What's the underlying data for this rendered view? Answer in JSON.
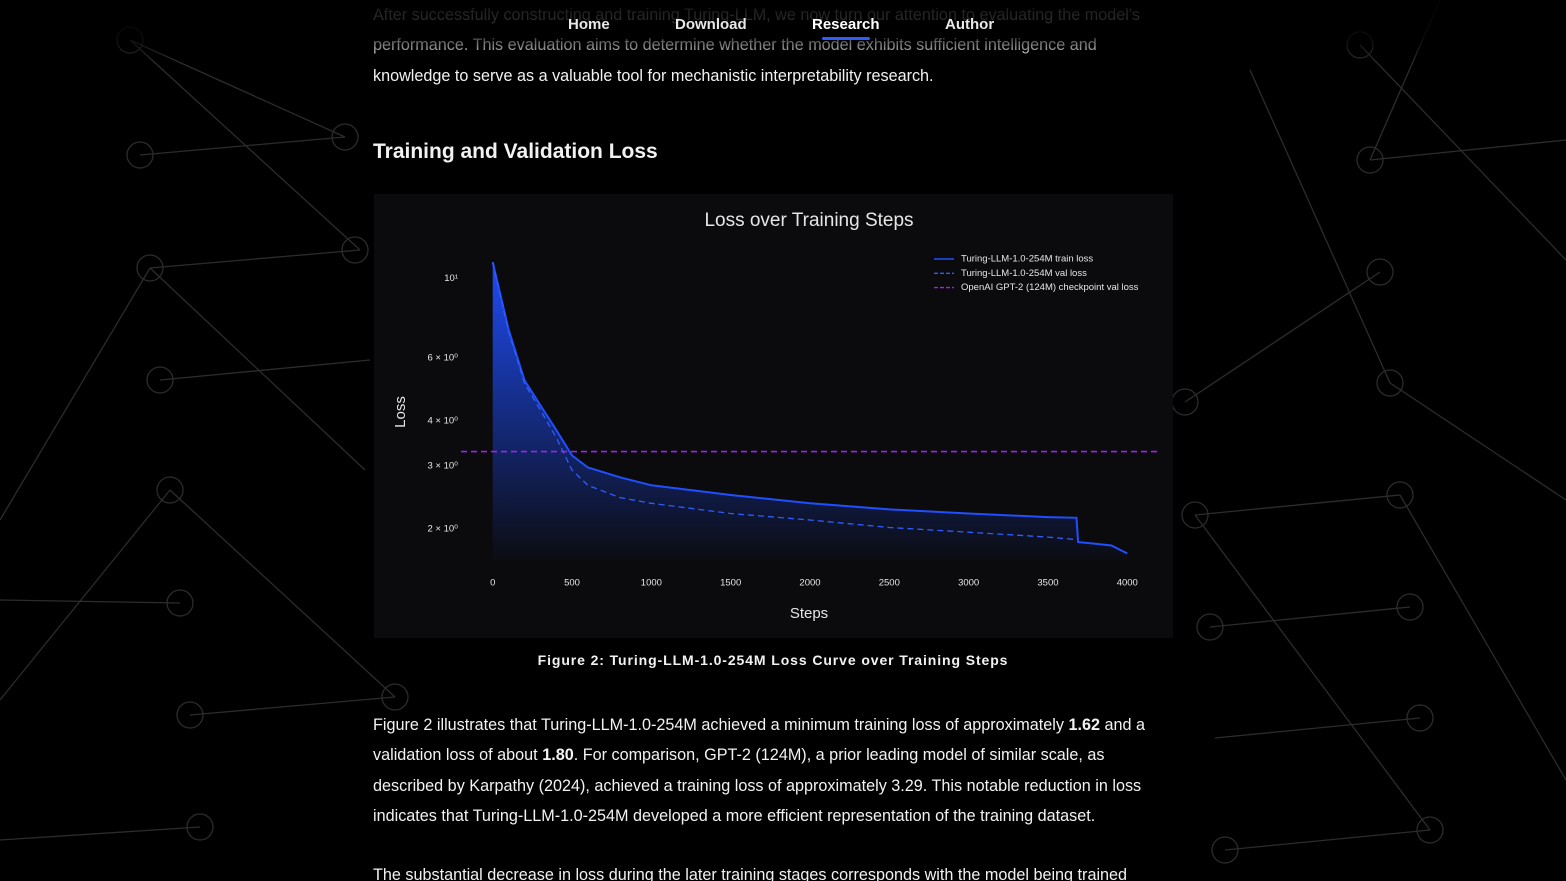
{
  "nav": {
    "items": [
      "Home",
      "Download",
      "Research",
      "Author"
    ],
    "active": 2
  },
  "intro": "After successfully constructing and training Turing-LLM, we now turn our attention to evaluating the model's performance. This evaluation aims to determine whether the model exhibits sufficient intelligence and knowledge to serve as a valuable tool for mechanistic interpretability research.",
  "heading": "Training and Validation Loss",
  "chart_data": {
    "type": "line",
    "title": "Loss over Training Steps",
    "x_label": "Steps",
    "y_label": "Loss",
    "log_y": true,
    "legend": "upper right",
    "xlim": [
      -200,
      4200
    ],
    "xticks": [
      0,
      500,
      1000,
      1500,
      2000,
      2500,
      3000,
      3500,
      4000
    ],
    "ylim": [
      1.64,
      12
    ],
    "yticks": [
      {
        "value": 10,
        "label": "10¹"
      },
      {
        "value": 6,
        "label": "6 × 10⁰"
      },
      {
        "value": 4,
        "label": "4 × 10⁰"
      },
      {
        "value": 3,
        "label": "3 × 10⁰"
      },
      {
        "value": 2,
        "label": "2 × 10⁰"
      }
    ],
    "series": [
      {
        "name": "Turing-LLM-1.0-254M train loss",
        "color": "#1f4fff",
        "style": "solid",
        "fill": true,
        "x": [
          0,
          100,
          200,
          300,
          400,
          500,
          600,
          800,
          1000,
          1500,
          2000,
          2500,
          3000,
          3500,
          3680,
          3690,
          3800,
          3900,
          4000
        ],
        "values": [
          11.1,
          7.2,
          5.2,
          4.43,
          3.78,
          3.21,
          2.97,
          2.79,
          2.65,
          2.49,
          2.36,
          2.27,
          2.21,
          2.16,
          2.15,
          1.84,
          1.82,
          1.8,
          1.71
        ]
      },
      {
        "name": "Turing-LLM-1.0-254M val loss",
        "color": "#2f5cff",
        "style": "dashed",
        "x": [
          0,
          100,
          200,
          300,
          400,
          500,
          600,
          800,
          1000,
          1500,
          2000,
          2500,
          3000,
          3500,
          3680
        ],
        "values": [
          11.1,
          7.1,
          5.1,
          4.3,
          3.6,
          2.92,
          2.65,
          2.45,
          2.36,
          2.21,
          2.12,
          2.02,
          1.96,
          1.9,
          1.87
        ]
      },
      {
        "name": "OpenAI GPT-2 (124M) checkpoint val loss",
        "color": "#a020f0",
        "style": "dashed",
        "hline": true,
        "values": [
          3.29
        ]
      }
    ]
  },
  "caption": "Figure 2: Turing-LLM-1.0-254M Loss Curve over Training Steps",
  "results": [
    "Figure 2 illustrates that Turing-LLM-1.0-254M achieved a minimum training loss of approximately ",
    "1.62",
    " and a validation loss of about ",
    "1.80",
    ". For comparison, GPT-2 (124M), a prior leading model of similar scale, as described by Karpathy (2024), achieved a training loss of approximately 3.29. This notable reduction in loss indicates that Turing-LLM-1.0-254M developed a more efficient representation of the training dataset."
  ],
  "next": "The substantial decrease in loss during the later training stages corresponds with the model being trained"
}
